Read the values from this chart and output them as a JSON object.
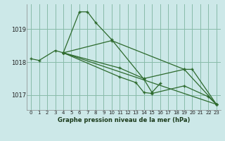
{
  "background_color": "#cce8e8",
  "plot_bg_color": "#cce8e8",
  "grid_color": "#88bbaa",
  "line_color": "#2d6a2d",
  "xlabel": "Graphe pression niveau de la mer (hPa)",
  "yticks": [
    1017,
    1018,
    1019
  ],
  "xticks": [
    0,
    1,
    2,
    3,
    4,
    5,
    6,
    7,
    8,
    9,
    10,
    11,
    12,
    13,
    14,
    15,
    16,
    17,
    18,
    19,
    20,
    21,
    22,
    23
  ],
  "xlim": [
    -0.5,
    23.5
  ],
  "ylim": [
    1016.55,
    1019.75
  ],
  "line1_x": [
    0,
    1,
    3,
    4,
    6,
    7,
    8,
    10,
    14,
    15,
    16
  ],
  "line1_y": [
    1018.1,
    1018.05,
    1018.35,
    1018.28,
    1019.52,
    1019.52,
    1019.2,
    1018.68,
    1017.48,
    1017.08,
    1017.35
  ],
  "line2_x": [
    4,
    23
  ],
  "line2_y": [
    1018.28,
    1016.72
  ],
  "line3_x": [
    4,
    11,
    14,
    19,
    20,
    23
  ],
  "line3_y": [
    1018.28,
    1017.82,
    1017.5,
    1017.78,
    1017.78,
    1016.72
  ],
  "line4_x": [
    4,
    11,
    13,
    14,
    15,
    19,
    22,
    23
  ],
  "line4_y": [
    1018.28,
    1017.55,
    1017.38,
    1017.08,
    1017.05,
    1017.28,
    1016.95,
    1016.72
  ],
  "line5_x": [
    4,
    10,
    19,
    23
  ],
  "line5_y": [
    1018.28,
    1018.65,
    1017.78,
    1016.72
  ]
}
